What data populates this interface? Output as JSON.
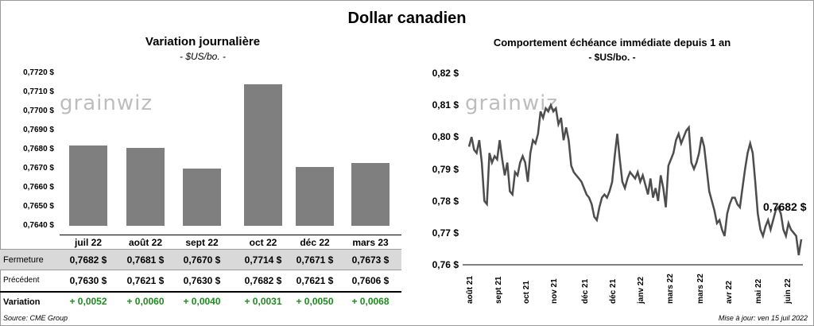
{
  "title": "Dollar canadien",
  "watermark": "grainwiz",
  "source": "Source: CME Group",
  "updated": "Mise à jour: ven 15 juil 2022",
  "colors": {
    "bar": "#7f7f7f",
    "line": "#4d4d4d",
    "positive": "#1e8a1e",
    "row_shade": "#d9d9d9"
  },
  "table": {
    "rows": [
      {
        "label": "Fermeture",
        "values": [
          "0,7682  $",
          "0,7681  $",
          "0,7670  $",
          "0,7714  $",
          "0,7671  $",
          "0,7673  $"
        ]
      },
      {
        "label": "Précédent",
        "values": [
          "0,7630  $",
          "0,7621  $",
          "0,7630  $",
          "0,7682  $",
          "0,7621  $",
          "0,7606  $"
        ]
      },
      {
        "label": "Variation",
        "values": [
          "+ 0,0052",
          "+ 0,0060",
          "+ 0,0040",
          "+ 0,0031",
          "+ 0,0050",
          "+ 0,0068"
        ]
      }
    ]
  },
  "chart_data": [
    {
      "type": "bar",
      "title": "Variation  journalière",
      "subtitle": "- $US/bo. -",
      "categories": [
        "juil 22",
        "août 22",
        "sept 22",
        "oct 22",
        "déc 22",
        "mars 23"
      ],
      "values": [
        0.7682,
        0.7681,
        0.767,
        0.7714,
        0.7671,
        0.7673
      ],
      "ylim": [
        0.764,
        0.772
      ],
      "yticks": [
        "0,7640 $",
        "0,7650 $",
        "0,7660 $",
        "0,7670 $",
        "0,7680 $",
        "0,7690 $",
        "0,7700 $",
        "0,7710 $",
        "0,7720 $"
      ],
      "grid": false
    },
    {
      "type": "line",
      "title": "Comportement échéance immédiate depuis 1 an",
      "subtitle": "- $US/bo. -",
      "ylim": [
        0.76,
        0.82
      ],
      "yticks": [
        "0,76 $",
        "0,77 $",
        "0,78 $",
        "0,79 $",
        "0,80 $",
        "0,81 $",
        "0,82 $"
      ],
      "xlabels": [
        "août 21",
        "sept 21",
        "oct 21",
        "nov 21",
        "déc 21",
        "déc 21",
        "janv 22",
        "mars 22",
        "mars 22",
        "avr 22",
        "mai 22",
        "juin 22"
      ],
      "last_value_label": "0,7682 $",
      "values": [
        0.797,
        0.8,
        0.796,
        0.795,
        0.799,
        0.792,
        0.78,
        0.779,
        0.795,
        0.792,
        0.794,
        0.793,
        0.799,
        0.793,
        0.788,
        0.792,
        0.783,
        0.782,
        0.789,
        0.788,
        0.792,
        0.794,
        0.792,
        0.786,
        0.795,
        0.799,
        0.798,
        0.801,
        0.808,
        0.806,
        0.809,
        0.808,
        0.81,
        0.808,
        0.809,
        0.804,
        0.806,
        0.799,
        0.803,
        0.799,
        0.791,
        0.789,
        0.788,
        0.787,
        0.786,
        0.784,
        0.782,
        0.781,
        0.779,
        0.775,
        0.774,
        0.778,
        0.781,
        0.782,
        0.781,
        0.783,
        0.786,
        0.794,
        0.801,
        0.793,
        0.786,
        0.784,
        0.787,
        0.789,
        0.788,
        0.787,
        0.789,
        0.786,
        0.788,
        0.785,
        0.782,
        0.787,
        0.781,
        0.784,
        0.78,
        0.788,
        0.784,
        0.778,
        0.791,
        0.793,
        0.795,
        0.799,
        0.801,
        0.798,
        0.8,
        0.802,
        0.803,
        0.792,
        0.79,
        0.792,
        0.795,
        0.8,
        0.797,
        0.79,
        0.783,
        0.78,
        0.777,
        0.773,
        0.774,
        0.771,
        0.769,
        0.776,
        0.779,
        0.781,
        0.781,
        0.779,
        0.778,
        0.784,
        0.79,
        0.795,
        0.798,
        0.795,
        0.786,
        0.776,
        0.771,
        0.769,
        0.772,
        0.774,
        0.771,
        0.774,
        0.777,
        0.778,
        0.776,
        0.771,
        0.769,
        0.773,
        0.771,
        0.77,
        0.769,
        0.763,
        0.768
      ]
    }
  ]
}
